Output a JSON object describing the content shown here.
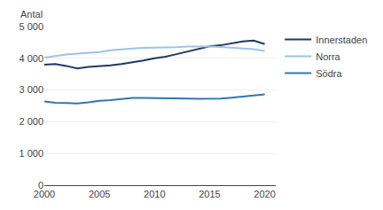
{
  "chart_data": {
    "type": "line",
    "ylabel": "Antal",
    "x": [
      2000,
      2001,
      2002,
      2003,
      2004,
      2005,
      2006,
      2007,
      2008,
      2009,
      2010,
      2011,
      2012,
      2013,
      2014,
      2015,
      2016,
      2017,
      2018,
      2019,
      2020
    ],
    "series": [
      {
        "name": "Innerstaden",
        "color": "#1f3864",
        "values": [
          3800,
          3820,
          3760,
          3680,
          3730,
          3750,
          3780,
          3820,
          3870,
          3930,
          4000,
          4050,
          4130,
          4220,
          4310,
          4380,
          4410,
          4480,
          4530,
          4560,
          4450
        ]
      },
      {
        "name": "Norra",
        "color": "#9dc3e6",
        "values": [
          4020,
          4080,
          4120,
          4150,
          4170,
          4200,
          4250,
          4290,
          4310,
          4330,
          4330,
          4330,
          4350,
          4370,
          4380,
          4370,
          4360,
          4340,
          4300,
          4290,
          4230
        ]
      },
      {
        "name": "Södra",
        "color": "#2e75b6",
        "values": [
          2640,
          2600,
          2590,
          2580,
          2610,
          2660,
          2680,
          2710,
          2750,
          2750,
          2750,
          2730,
          2730,
          2730,
          2720,
          2720,
          2730,
          2760,
          2790,
          2810,
          2860
        ]
      }
    ],
    "xlim": [
      2000,
      2021
    ],
    "xticks": [
      2000,
      2005,
      2010,
      2015,
      2020
    ],
    "ylim": [
      0,
      5000
    ],
    "yticks": [
      0,
      {
        "value": 1000,
        "label": "1 000"
      },
      {
        "value": 2000,
        "label": "2 000"
      },
      {
        "value": 3000,
        "label": "3 000"
      },
      {
        "value": 4000,
        "label": "4 000"
      },
      {
        "value": 5000,
        "label": "5 000"
      }
    ],
    "grid": "y",
    "legend": "right"
  }
}
